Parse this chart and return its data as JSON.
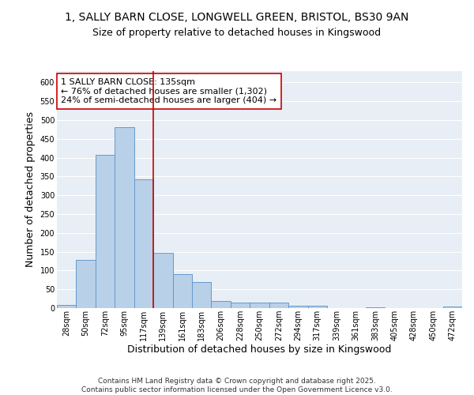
{
  "title_line1": "1, SALLY BARN CLOSE, LONGWELL GREEN, BRISTOL, BS30 9AN",
  "title_line2": "Size of property relative to detached houses in Kingswood",
  "xlabel": "Distribution of detached houses by size in Kingswood",
  "ylabel": "Number of detached properties",
  "categories": [
    "28sqm",
    "50sqm",
    "72sqm",
    "95sqm",
    "117sqm",
    "139sqm",
    "161sqm",
    "183sqm",
    "206sqm",
    "228sqm",
    "250sqm",
    "272sqm",
    "294sqm",
    "317sqm",
    "339sqm",
    "361sqm",
    "383sqm",
    "405sqm",
    "428sqm",
    "450sqm",
    "472sqm"
  ],
  "values": [
    8,
    128,
    408,
    481,
    343,
    148,
    90,
    70,
    18,
    14,
    15,
    15,
    7,
    6,
    0,
    0,
    3,
    0,
    0,
    0,
    4
  ],
  "bar_color": "#b8d0e8",
  "bar_edge_color": "#6699cc",
  "background_color": "#e8eef5",
  "grid_color": "#ffffff",
  "annotation_text": "1 SALLY BARN CLOSE: 135sqm\n← 76% of detached houses are smaller (1,302)\n24% of semi-detached houses are larger (404) →",
  "vline_color": "#cc0000",
  "annotation_box_edge": "#cc0000",
  "ylim": [
    0,
    630
  ],
  "yticks": [
    0,
    50,
    100,
    150,
    200,
    250,
    300,
    350,
    400,
    450,
    500,
    550,
    600
  ],
  "footer_text": "Contains HM Land Registry data © Crown copyright and database right 2025.\nContains public sector information licensed under the Open Government Licence v3.0.",
  "title_fontsize": 10,
  "subtitle_fontsize": 9,
  "axis_label_fontsize": 9,
  "tick_fontsize": 7,
  "annotation_fontsize": 8,
  "footer_fontsize": 6.5
}
